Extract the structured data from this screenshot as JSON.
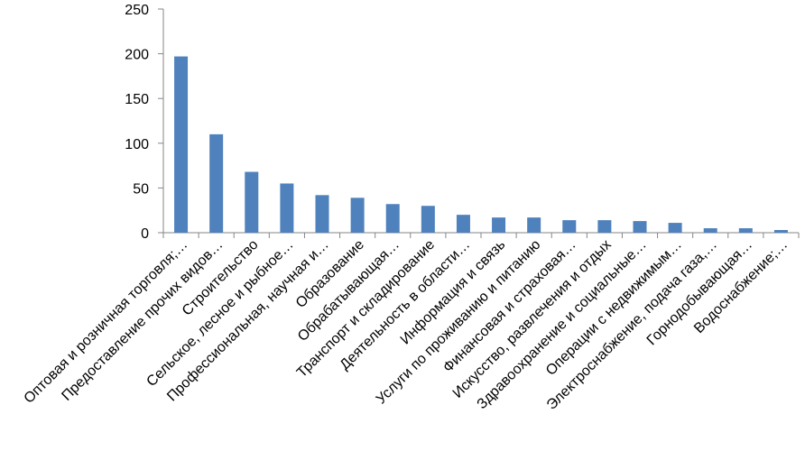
{
  "chart_data": {
    "type": "bar",
    "categories": [
      "Оптовая и розничная торговля;…",
      "Предоставление прочих видов…",
      "Строительство",
      "Сельское, лесное и рыбное…",
      "Профессиональная, научная и…",
      "Образование",
      "Обрабатывающая…",
      "Транспорт и складирование",
      "Деятельность в области…",
      "Информация и связь",
      "Услуги по проживанию и питанию",
      "Финансовая и страховая…",
      "Искусство, развлечения и отдых",
      "Здравоохранение и социальные…",
      "Операции с недвижимым…",
      "Электроснабжение, подача газа,…",
      "Горнодобывающая…",
      "Водоснабжение;…"
    ],
    "values": [
      197,
      110,
      68,
      55,
      42,
      39,
      32,
      30,
      20,
      17,
      17,
      14,
      14,
      13,
      11,
      5,
      5,
      3
    ],
    "color": "#4f81bd",
    "ylim": [
      0,
      250
    ],
    "yticks": [
      0,
      50,
      100,
      150,
      200,
      250
    ],
    "grid": false
  }
}
